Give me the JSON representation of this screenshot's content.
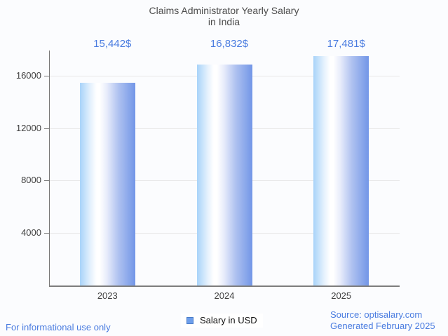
{
  "title": {
    "line1": "Claims Administrator Yearly Salary",
    "line2": "in India"
  },
  "chart_data": {
    "type": "bar",
    "title": "Claims Administrator Yearly Salary in India",
    "categories": [
      "2023",
      "2024",
      "2025"
    ],
    "values": [
      15442,
      16832,
      17481
    ],
    "value_labels": [
      "15,442$",
      "16,832$",
      "17,481$"
    ],
    "series": [
      {
        "name": "Salary in USD",
        "values": [
          15442,
          16832,
          17481
        ]
      }
    ],
    "xlabel": "",
    "ylabel": "",
    "ylim": [
      0,
      17925
    ],
    "yticks": [
      4000,
      8000,
      12000,
      16000
    ],
    "grid": true,
    "legend_position": "bottom",
    "bar_color_left": "#a8d3f9",
    "bar_color_highlight": "#ffffff",
    "bar_color_right": "#7296e7"
  },
  "legend": {
    "label": "Salary in USD",
    "swatch_color": "#6d9eeb"
  },
  "footer": {
    "disclaimer": "For informational use only",
    "source": "Source: optisalary.com",
    "generated": "Generated February 2025"
  },
  "colors": {
    "background": "#fbfcfe",
    "title_text": "#4c4c4c",
    "axis_text": "#404040",
    "blue_text": "#4a7ce0",
    "gridline": "#e8e8e8",
    "axis_line": "#787878"
  }
}
